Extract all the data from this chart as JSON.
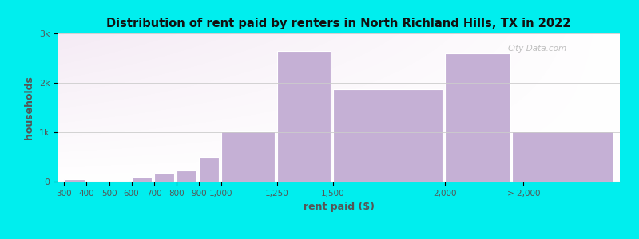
{
  "title": "Distribution of rent paid by renters in North Richland Hills, TX in 2022",
  "xlabel": "rent paid ($)",
  "ylabel": "households",
  "background_color": "#00EEEE",
  "bar_color": "#c5b0d5",
  "values": [
    50,
    10,
    20,
    100,
    170,
    220,
    500,
    1020,
    2650,
    1870,
    2600,
    1020
  ],
  "ylim": [
    0,
    3000
  ],
  "yticks": [
    0,
    1000,
    2000,
    3000
  ],
  "ytick_labels": [
    "0",
    "1k",
    "2k",
    "3k"
  ],
  "grid_color": "#cccccc",
  "watermark_text": "City-Data.com",
  "bar_lefts": [
    300,
    400,
    500,
    600,
    700,
    800,
    900,
    1000,
    1250,
    1500,
    2000,
    2300
  ],
  "bar_widths": [
    90,
    90,
    90,
    90,
    90,
    90,
    90,
    240,
    240,
    490,
    290,
    450
  ],
  "xtick_positions": [
    300,
    400,
    500,
    600,
    700,
    800,
    900,
    1000,
    1250,
    1500,
    2000,
    2350
  ],
  "xtick_labels": [
    "300",
    "400",
    "500",
    "600",
    "700",
    "800",
    "900",
    "1,000",
    "1,250",
    "1,500",
    "2,000",
    "> 2,000"
  ]
}
